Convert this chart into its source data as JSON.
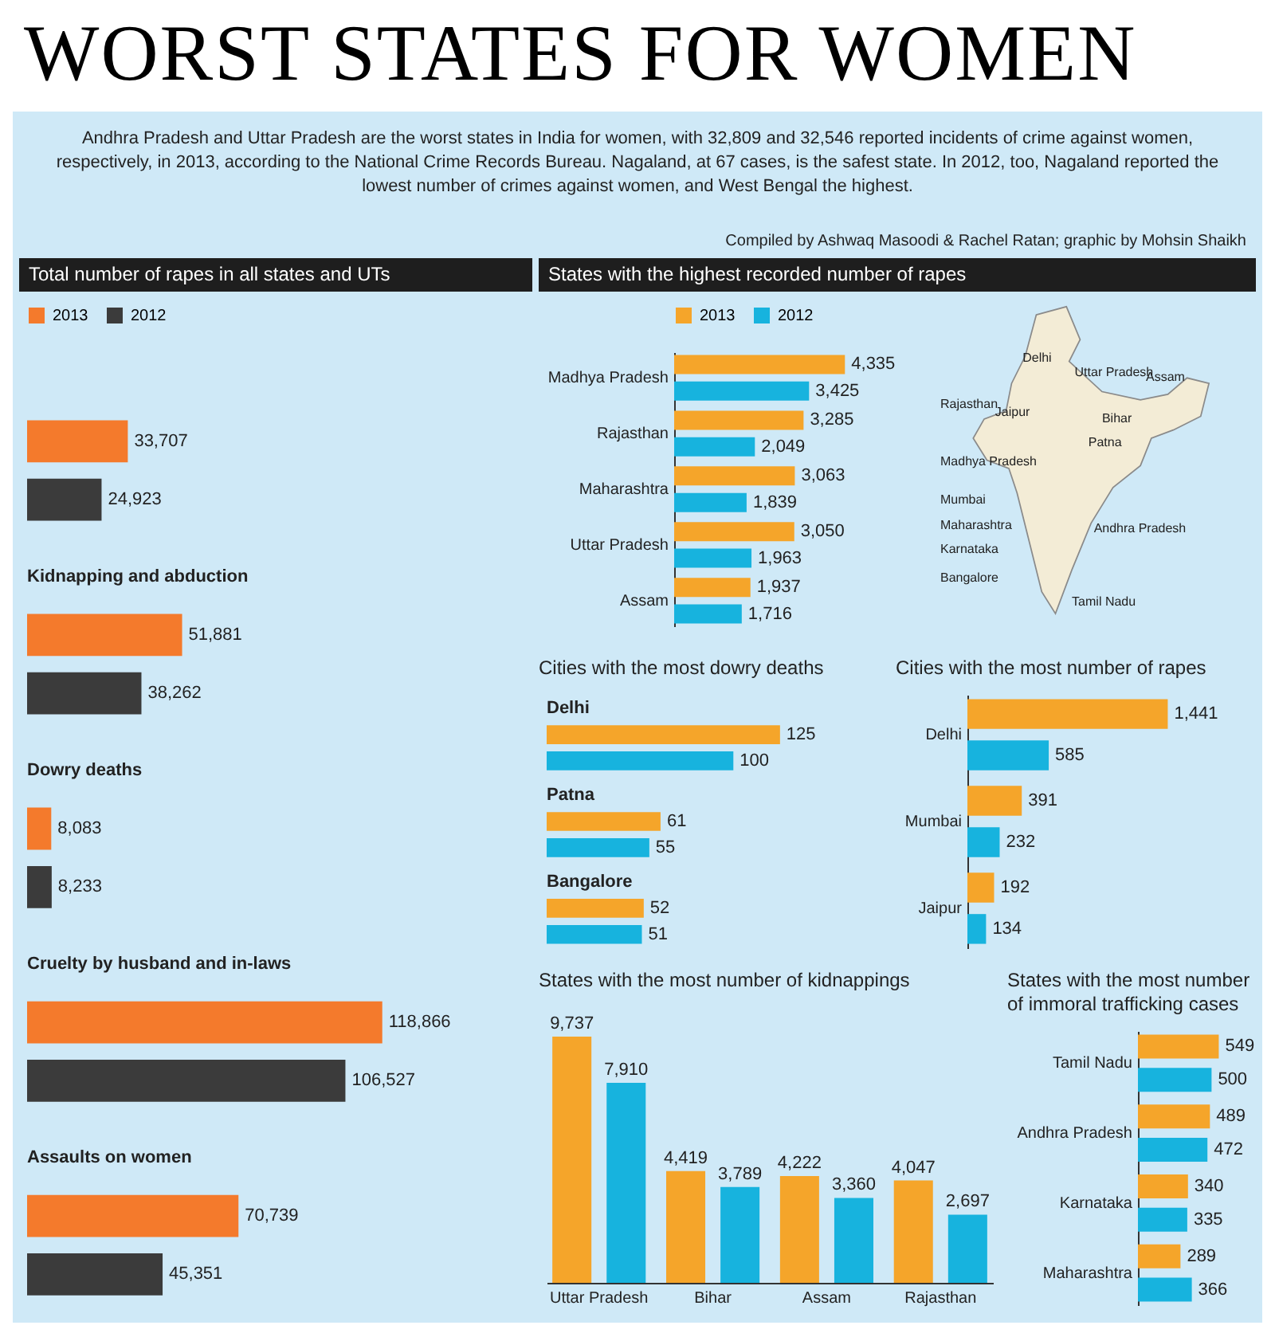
{
  "chart_data": [
    {
      "type": "other",
      "title": "WORST STATES FOR WOMEN",
      "subtitle": "Andhra Pradesh and Uttar Pradesh are the worst states in India for women, with 32,809 and 32,546 reported incidents of crime against women, respectively, in 2013, according to the National Crime Records Bureau. Nagaland, at 67 cases, is the safest state. In 2012, too, Nagaland reported the lowest number of crimes against women, and West Bengal the highest.",
      "annotations": [
        "Compiled by Ashwaq Masoodi & Rachel Ratan; graphic by Mohsin Shaikh"
      ]
    },
    {
      "type": "bar",
      "orientation": "horizontal",
      "title": "Total number of rapes in all states and UTs",
      "categories": [
        null,
        "Kidnapping and abduction",
        "Dowry deaths",
        "Cruelty by husband and in-laws",
        "Assaults on women"
      ],
      "series": [
        {
          "name": "2013",
          "color": "#f47a2c",
          "values": [
            33707,
            51881,
            8083,
            118866,
            70739
          ],
          "value_labels": [
            "33,707",
            "51,881",
            "8,083",
            "118,866",
            "70,739"
          ]
        },
        {
          "name": "2012",
          "color": "#3b3b3b",
          "values": [
            24923,
            38262,
            8233,
            106527,
            45351
          ],
          "value_labels": [
            "24,923",
            "38,262",
            "8,233",
            "106,527",
            "45,351"
          ]
        }
      ],
      "legend": "top left"
    },
    {
      "type": "bar",
      "orientation": "horizontal",
      "title": "States with the highest recorded number of rapes",
      "categories": [
        "Madhya Pradesh",
        "Rajasthan",
        "Maharashtra",
        "Uttar Pradesh",
        "Assam"
      ],
      "series": [
        {
          "name": "2013",
          "color": "#f5a52a",
          "values": [
            4335,
            3285,
            3063,
            3050,
            1937
          ],
          "value_labels": [
            "4,335",
            "3,285",
            "3,063",
            "3,050",
            "1,937"
          ]
        },
        {
          "name": "2012",
          "color": "#17b3de",
          "values": [
            3425,
            2049,
            1839,
            1963,
            1716
          ],
          "value_labels": [
            "3,425",
            "2,049",
            "1,839",
            "1,963",
            "1,716"
          ]
        }
      ],
      "legend": "top left",
      "annotations": [
        "Delhi",
        "Uttar Pradesh",
        "Assam",
        "Rajasthan",
        "Jaipur",
        "Bihar",
        "Patna",
        "Madhya Pradesh",
        "Mumbai",
        "Maharashtra",
        "Karnataka",
        "Andhra Pradesh",
        "Bangalore",
        "Tamil Nadu"
      ]
    },
    {
      "type": "bar",
      "orientation": "horizontal",
      "title": "Cities with the most dowry deaths",
      "categories": [
        "Delhi",
        "Patna",
        "Bangalore"
      ],
      "series": [
        {
          "color": "#f5a52a",
          "values": [
            125,
            61,
            52
          ],
          "value_labels": [
            "125",
            "61",
            "52"
          ]
        },
        {
          "color": "#17b3de",
          "values": [
            100,
            55,
            51
          ],
          "value_labels": [
            "100",
            "55",
            "51"
          ]
        }
      ]
    },
    {
      "type": "bar",
      "orientation": "horizontal",
      "title": "Cities with the most number of rapes",
      "categories": [
        "Delhi",
        "Mumbai",
        "Jaipur"
      ],
      "series": [
        {
          "color": "#f5a52a",
          "values": [
            1441,
            391,
            192
          ],
          "value_labels": [
            "1,441",
            "391",
            "192"
          ]
        },
        {
          "color": "#17b3de",
          "values": [
            585,
            232,
            134
          ],
          "value_labels": [
            "585",
            "232",
            "134"
          ]
        }
      ]
    },
    {
      "type": "bar",
      "title": "States with the most number of kidnappings",
      "categories": [
        "Uttar Pradesh",
        "Bihar",
        "Assam",
        "Rajasthan"
      ],
      "series": [
        {
          "color": "#f5a52a",
          "values": [
            9737,
            4419,
            4222,
            4047
          ],
          "value_labels": [
            "9,737",
            "4,419",
            "4,222",
            "4,047"
          ]
        },
        {
          "color": "#17b3de",
          "values": [
            7910,
            3789,
            3360,
            2697
          ],
          "value_labels": [
            "7,910",
            "3,789",
            "3,360",
            "2,697"
          ]
        }
      ]
    },
    {
      "type": "bar",
      "orientation": "horizontal",
      "title": "States with the most number of immoral trafficking cases",
      "categories": [
        "Tamil Nadu",
        "Andhra Pradesh",
        "Karnataka",
        "Maharashtra"
      ],
      "series": [
        {
          "color": "#f5a52a",
          "values": [
            549,
            489,
            340,
            289
          ],
          "value_labels": [
            "549",
            "489",
            "340",
            "289"
          ]
        },
        {
          "color": "#17b3de",
          "values": [
            500,
            472,
            335,
            366
          ],
          "value_labels": [
            "500",
            "472",
            "335",
            "366"
          ]
        }
      ]
    }
  ]
}
